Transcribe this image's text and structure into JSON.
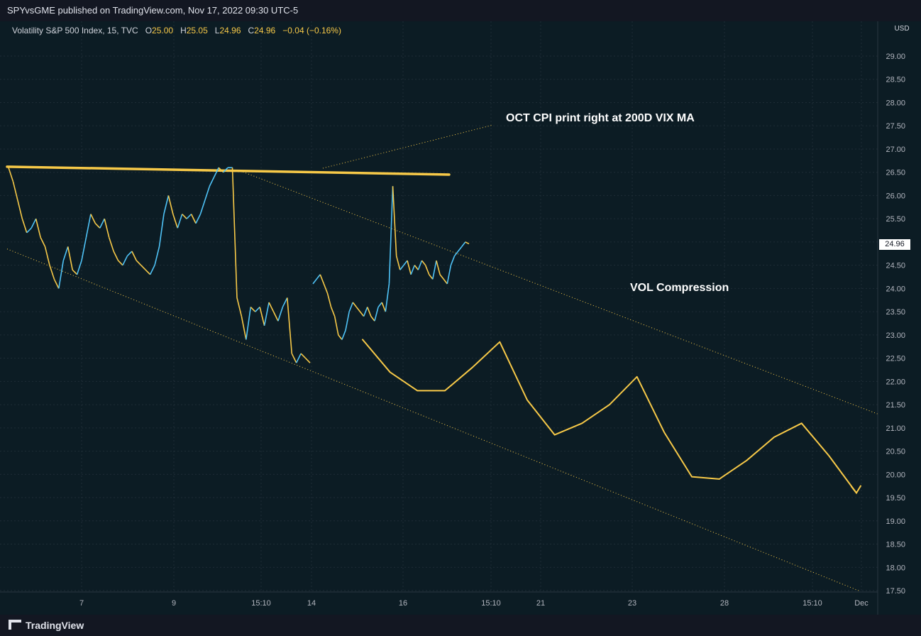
{
  "header": {
    "published": "SPYvsGME published on TradingView.com, Nov 17, 2022 09:30 UTC-5"
  },
  "legend": {
    "symbol": "Volatility S&P 500 Index, 15, TVC",
    "o_label": "O",
    "o_value": "25.00",
    "h_label": "H",
    "h_value": "25.05",
    "l_label": "L",
    "l_value": "24.96",
    "c_label": "C",
    "c_value": "24.96",
    "change": "−0.04 (−0.16%)"
  },
  "annotations": {
    "cpi_note": "OCT CPI print right at 200D VIX MA",
    "vol_note": "VOL Compression"
  },
  "price_tag": "24.96",
  "footer": {
    "brand": "TradingView"
  },
  "colors": {
    "background": "#0c1c24",
    "line_up": "#4fc3f7",
    "line_down": "#f7c948",
    "annotation": "#f7c948",
    "grid": "#1e2d36"
  },
  "chart_data": {
    "type": "line",
    "title": "",
    "currency": "USD",
    "y_ticks": [
      "29.00",
      "28.50",
      "28.00",
      "27.50",
      "27.00",
      "26.50",
      "26.00",
      "25.50",
      "25.00",
      "24.50",
      "24.00",
      "23.50",
      "23.00",
      "22.50",
      "22.00",
      "21.50",
      "21.00",
      "20.50",
      "20.00",
      "19.50",
      "19.00",
      "18.50",
      "18.00",
      "17.50"
    ],
    "ylim": [
      17.5,
      29.0
    ],
    "x_ticks": [
      "7",
      "9",
      "15:10",
      "14",
      "16",
      "15:10",
      "21",
      "23",
      "28",
      "15:10",
      "Dec"
    ],
    "grid": true,
    "series": [
      {
        "values": [
          26.6,
          26.3,
          25.9,
          25.5,
          25.2,
          25.3,
          25.5,
          25.1,
          24.9,
          24.5,
          24.2,
          24.0,
          24.6,
          24.9,
          24.4,
          24.3,
          24.6,
          25.1,
          25.6,
          25.4,
          25.3,
          25.5,
          25.1,
          24.8,
          24.6,
          24.5,
          24.7,
          24.8,
          24.6,
          24.5,
          24.4,
          24.3,
          24.5,
          24.9,
          25.6,
          26.0,
          25.6,
          25.3,
          25.6,
          25.5,
          25.6,
          25.4,
          25.6,
          25.9,
          26.2,
          26.4,
          26.6,
          26.5,
          26.6,
          26.6,
          23.8,
          23.4,
          22.9,
          23.6,
          23.5,
          23.6,
          23.2,
          23.7,
          23.5,
          23.3,
          23.6,
          23.8,
          22.6,
          22.4,
          22.6,
          22.5,
          22.4
        ]
      },
      {
        "values": [
          24.1,
          24.2,
          24.3,
          24.1,
          23.9,
          23.6,
          23.4,
          23.0,
          22.9,
          23.1,
          23.5,
          23.7,
          23.6,
          23.5,
          23.4,
          23.6,
          23.4,
          23.3,
          23.6,
          23.7,
          23.5,
          24.1,
          26.2,
          24.7,
          24.4,
          24.5,
          24.6,
          24.3,
          24.5,
          24.4,
          24.6,
          24.5,
          24.3,
          24.2,
          24.6,
          24.3,
          24.2,
          24.1,
          24.5,
          24.7,
          24.8,
          24.9,
          25.0,
          24.96
        ]
      }
    ],
    "overlay_lines": {
      "ma_200d": [
        [
          0,
          26.62
        ],
        [
          1,
          26.45
        ]
      ],
      "channel_upper": [
        [
          0,
          26.55
        ],
        [
          1,
          21.3
        ]
      ],
      "channel_lower": [
        [
          0,
          24.85
        ],
        [
          1,
          17.5
        ]
      ]
    },
    "projection_path": [
      22.9,
      22.2,
      21.8,
      21.8,
      22.3,
      22.85,
      21.6,
      20.85,
      21.1,
      21.5,
      22.1,
      20.9,
      19.95,
      19.9,
      20.3,
      20.8,
      21.1,
      20.4,
      19.6
    ]
  }
}
